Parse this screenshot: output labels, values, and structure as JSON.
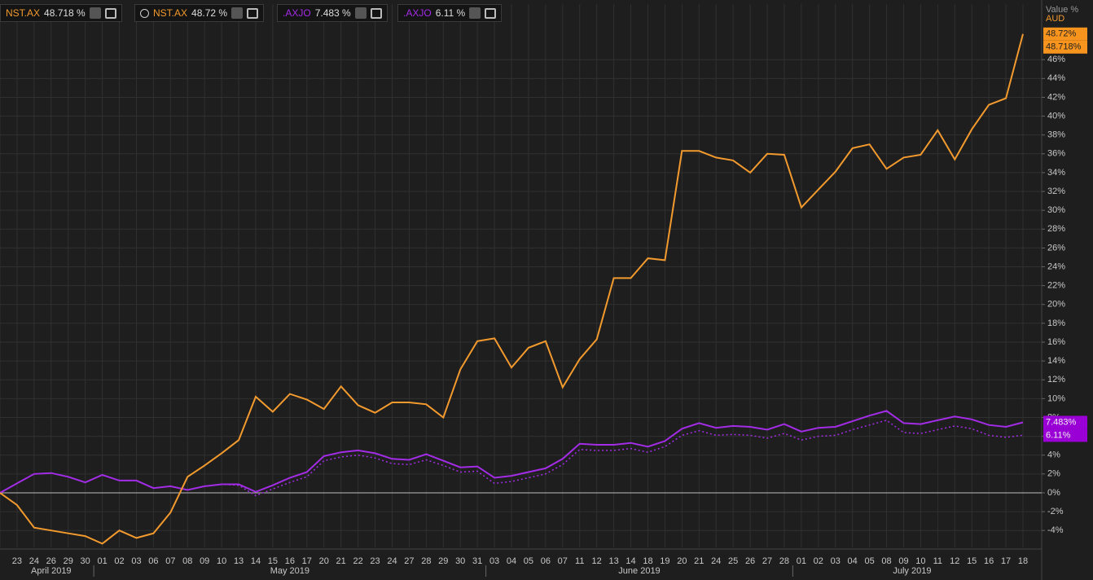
{
  "chart_data": {
    "type": "line",
    "categories": [
      null,
      "23",
      "24",
      "26",
      "29",
      "30",
      "01",
      "02",
      "03",
      "06",
      "07",
      "08",
      "09",
      "10",
      "13",
      "14",
      "15",
      "16",
      "17",
      "20",
      "21",
      "22",
      "23",
      "24",
      "27",
      "28",
      "29",
      "30",
      "31",
      "03",
      "04",
      "05",
      "06",
      "07",
      "11",
      "12",
      "13",
      "14",
      "18",
      "19",
      "20",
      "21",
      "24",
      "25",
      "26",
      "27",
      "28",
      "01",
      "02",
      "03",
      "04",
      "05",
      "08",
      "09",
      "10",
      "11",
      "12",
      "15",
      "16",
      "17",
      "18"
    ],
    "months": [
      "April 2019",
      "May 2019",
      "June 2019",
      "July 2019"
    ],
    "series": [
      {
        "name": "NST.AX",
        "color": "#f39a2e",
        "dash": false,
        "values": [
          0,
          -1.3,
          -3.7,
          -4.0,
          -4.3,
          -4.6,
          -5.4,
          -4.0,
          -4.8,
          -4.3,
          -2.1,
          1.7,
          2.9,
          4.2,
          5.6,
          10.2,
          8.6,
          10.5,
          9.9,
          8.9,
          11.3,
          9.3,
          8.5,
          9.6,
          9.6,
          9.4,
          8.0,
          13.1,
          16.1,
          16.4,
          13.3,
          15.4,
          16.1,
          11.2,
          14.2,
          16.3,
          22.8,
          22.8,
          24.9,
          24.7,
          36.3,
          36.3,
          35.6,
          35.3,
          34.0,
          36.0,
          35.9,
          30.3,
          32.2,
          34.1,
          36.6,
          37.0,
          34.4,
          35.6,
          35.9,
          38.5,
          35.4,
          38.6,
          41.2,
          41.9,
          48.718
        ]
      },
      {
        "name": ".AXJO",
        "color": "#a32ce6",
        "dash": false,
        "values": [
          0,
          1.0,
          2.0,
          2.1,
          1.7,
          1.1,
          1.9,
          1.3,
          1.3,
          0.5,
          0.7,
          0.3,
          0.7,
          0.9,
          0.9,
          0.1,
          0.8,
          1.6,
          2.2,
          3.9,
          4.3,
          4.5,
          4.2,
          3.6,
          3.5,
          4.1,
          3.4,
          2.7,
          2.8,
          1.6,
          1.8,
          2.2,
          2.6,
          3.6,
          5.2,
          5.1,
          5.1,
          5.3,
          4.9,
          5.5,
          6.8,
          7.4,
          6.9,
          7.1,
          7.0,
          6.7,
          7.3,
          6.5,
          6.9,
          7.0,
          7.6,
          8.2,
          8.7,
          7.4,
          7.3,
          7.7,
          8.1,
          7.8,
          7.2,
          7.0,
          7.483
        ]
      },
      {
        "name": ".AXJO",
        "color": "#a32ce6",
        "dash": true,
        "values": [
          0,
          1.0,
          2.0,
          2.1,
          1.7,
          1.1,
          1.9,
          1.3,
          1.3,
          0.5,
          0.7,
          0.3,
          0.7,
          0.9,
          0.8,
          -0.3,
          0.4,
          1.1,
          1.7,
          3.4,
          3.8,
          4.0,
          3.7,
          3.1,
          3.0,
          3.5,
          2.9,
          2.2,
          2.3,
          1.0,
          1.2,
          1.6,
          2.0,
          3.0,
          4.6,
          4.5,
          4.5,
          4.7,
          4.3,
          4.9,
          6.1,
          6.6,
          6.1,
          6.2,
          6.1,
          5.8,
          6.3,
          5.6,
          6.0,
          6.1,
          6.7,
          7.2,
          7.7,
          6.4,
          6.3,
          6.7,
          7.1,
          6.8,
          6.1,
          5.9,
          6.11
        ]
      }
    ],
    "legend": [
      {
        "name": "NST.AX",
        "label": "48.718 %",
        "color": "#f39a2e"
      },
      {
        "name": "NST.AX",
        "label": "48.72 %",
        "color": "#f39a2e"
      },
      {
        "name": ".AXJO",
        "label": "7.483 %",
        "color": "#a32ce6"
      },
      {
        "name": ".AXJO",
        "label": "6.11 %",
        "color": "#a32ce6"
      }
    ],
    "y_axis_title": "Value %",
    "y_axis_unit": "AUD",
    "end_labels": [
      {
        "value": 48.72,
        "label": "48.72%",
        "color": "#f7941d"
      },
      {
        "value": 48.718,
        "label": "48.718%",
        "color": "#f7941d"
      },
      {
        "value": 7.483,
        "label": "7.483%",
        "color": "#9a00d6"
      },
      {
        "value": 6.11,
        "label": "6.11%",
        "color": "#9a00d6"
      }
    ],
    "ylim": [
      -5.8,
      51.9
    ],
    "yticks": [
      {
        "value": -4,
        "label": "-4%"
      },
      {
        "value": -2,
        "label": "-2%"
      },
      {
        "value": 0,
        "label": "0%"
      },
      {
        "value": 2,
        "label": "2%"
      },
      {
        "value": 4,
        "label": "4%"
      },
      {
        "value": 6,
        "label": "6%"
      },
      {
        "value": 8,
        "label": "8%"
      },
      {
        "value": 10,
        "label": "10%"
      },
      {
        "value": 12,
        "label": "12%"
      },
      {
        "value": 14,
        "label": "14%"
      },
      {
        "value": 16,
        "label": "16%"
      },
      {
        "value": 18,
        "label": "18%"
      },
      {
        "value": 20,
        "label": "20%"
      },
      {
        "value": 22,
        "label": "22%"
      },
      {
        "value": 24,
        "label": "24%"
      },
      {
        "value": 26,
        "label": "26%"
      },
      {
        "value": 28,
        "label": "28%"
      },
      {
        "value": 30,
        "label": "30%"
      },
      {
        "value": 32,
        "label": "32%"
      },
      {
        "value": 34,
        "label": "34%"
      },
      {
        "value": 36,
        "label": "36%"
      },
      {
        "value": 38,
        "label": "38%"
      },
      {
        "value": 40,
        "label": "40%"
      },
      {
        "value": 42,
        "label": "42%"
      },
      {
        "value": 44,
        "label": "44%"
      },
      {
        "value": 46,
        "label": "46%"
      }
    ],
    "grid": true
  }
}
